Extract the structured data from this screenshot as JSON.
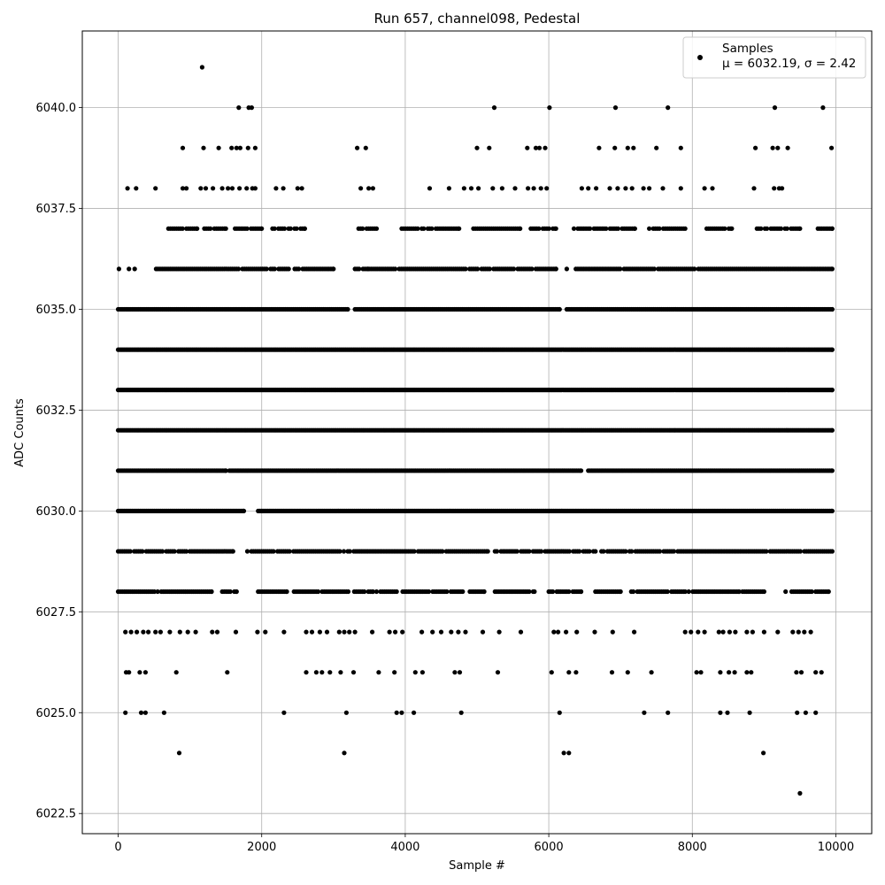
{
  "chart_data": {
    "type": "scatter",
    "title": "Run 657, channel098, Pedestal",
    "xlabel": "Sample #",
    "ylabel": "ADC Counts",
    "xlim": [
      -500,
      10500
    ],
    "ylim": [
      6022.0,
      6041.9
    ],
    "xticks": [
      0,
      2000,
      4000,
      6000,
      8000,
      10000
    ],
    "xtick_labels": [
      "0",
      "2000",
      "4000",
      "6000",
      "8000",
      "10000"
    ],
    "yticks": [
      6022.5,
      6025.0,
      6027.5,
      6030.0,
      6032.5,
      6035.0,
      6037.5,
      6040.0
    ],
    "ytick_labels": [
      "6022.5",
      "6025.0",
      "6027.5",
      "6030.0",
      "6032.5",
      "6035.0",
      "6037.5",
      "6040.0"
    ],
    "grid": true,
    "legend": {
      "placement": "top-right",
      "entries": [
        {
          "name": "Samples",
          "stat_line": "μ = 6032.19, σ = 2.42"
        }
      ]
    },
    "color": "#000000",
    "series": [
      {
        "name": "Samples",
        "levels": [
          {
            "y": 6028.0,
            "segments": [
              [
                0,
                550
              ],
              [
                600,
                1300
              ],
              [
                1450,
                1650
              ],
              [
                1950,
                2350
              ],
              [
                2450,
                3550
              ],
              [
                3600,
                4800
              ],
              [
                4900,
                5100
              ],
              [
                5250,
                5800
              ],
              [
                6000,
                6450
              ],
              [
                6650,
                7000
              ],
              [
                7150,
                7900
              ],
              [
                7950,
                8650
              ],
              [
                8700,
                9000
              ],
              [
                9300,
                9900
              ]
            ]
          },
          {
            "y": 6029.0,
            "segments": [
              [
                0,
                950
              ],
              [
                1000,
                1600
              ],
              [
                1800,
                5150
              ],
              [
                5250,
                9950
              ]
            ]
          },
          {
            "y": 6030.0,
            "segments": [
              [
                0,
                1750
              ],
              [
                1950,
                9950
              ]
            ]
          },
          {
            "y": 6031.0,
            "segments": [
              [
                0,
                1500
              ],
              [
                1550,
                6450
              ],
              [
                6550,
                9950
              ]
            ]
          },
          {
            "y": 6032.0,
            "segments": [
              [
                0,
                9950
              ]
            ]
          },
          {
            "y": 6033.0,
            "segments": [
              [
                0,
                9950
              ]
            ]
          },
          {
            "y": 6034.0,
            "segments": [
              [
                0,
                9950
              ]
            ]
          },
          {
            "y": 6035.0,
            "segments": [
              [
                0,
                3200
              ],
              [
                3300,
                6150
              ],
              [
                6250,
                9950
              ]
            ]
          },
          {
            "y": 6036.0,
            "segments": [
              [
                500,
                3000
              ],
              [
                3300,
                6100
              ],
              [
                6350,
                9950
              ]
            ]
          },
          {
            "y": 6037.0,
            "segments": [
              [
                700,
                1100
              ],
              [
                1200,
                1500
              ],
              [
                1600,
                2000
              ],
              [
                2150,
                2600
              ],
              [
                3350,
                3600
              ],
              [
                3950,
                4750
              ],
              [
                4950,
                5600
              ],
              [
                5750,
                6100
              ],
              [
                6350,
                7200
              ],
              [
                7400,
                7900
              ],
              [
                8200,
                8550
              ],
              [
                8900,
                9500
              ],
              [
                9750,
                9950
              ]
            ]
          }
        ],
        "points": [
          [
            1170,
            6041
          ],
          [
            1680,
            6040
          ],
          [
            1820,
            6040
          ],
          [
            1860,
            6040
          ],
          [
            5240,
            6040
          ],
          [
            6010,
            6040
          ],
          [
            6930,
            6040
          ],
          [
            7660,
            6040
          ],
          [
            9150,
            6040
          ],
          [
            9820,
            6040
          ],
          [
            900,
            6039
          ],
          [
            1190,
            6039
          ],
          [
            1400,
            6039
          ],
          [
            1580,
            6039
          ],
          [
            1650,
            6039
          ],
          [
            1700,
            6039
          ],
          [
            1810,
            6039
          ],
          [
            1910,
            6039
          ],
          [
            3330,
            6039
          ],
          [
            3450,
            6039
          ],
          [
            5000,
            6039
          ],
          [
            5170,
            6039
          ],
          [
            5700,
            6039
          ],
          [
            5820,
            6039
          ],
          [
            5870,
            6039
          ],
          [
            5950,
            6039
          ],
          [
            6700,
            6039
          ],
          [
            6920,
            6039
          ],
          [
            7100,
            6039
          ],
          [
            7180,
            6039
          ],
          [
            7500,
            6039
          ],
          [
            7840,
            6039
          ],
          [
            8880,
            6039
          ],
          [
            9120,
            6039
          ],
          [
            9190,
            6039
          ],
          [
            9330,
            6039
          ],
          [
            9940,
            6039
          ],
          [
            130,
            6038
          ],
          [
            250,
            6038
          ],
          [
            520,
            6038
          ],
          [
            900,
            6038
          ],
          [
            950,
            6038
          ],
          [
            1150,
            6038
          ],
          [
            1220,
            6038
          ],
          [
            1320,
            6038
          ],
          [
            1450,
            6038
          ],
          [
            1530,
            6038
          ],
          [
            1590,
            6038
          ],
          [
            1690,
            6038
          ],
          [
            1790,
            6038
          ],
          [
            1870,
            6038
          ],
          [
            1910,
            6038
          ],
          [
            2200,
            6038
          ],
          [
            2300,
            6038
          ],
          [
            2500,
            6038
          ],
          [
            2560,
            6038
          ],
          [
            3380,
            6038
          ],
          [
            3490,
            6038
          ],
          [
            3550,
            6038
          ],
          [
            4340,
            6038
          ],
          [
            4610,
            6038
          ],
          [
            4820,
            6038
          ],
          [
            4920,
            6038
          ],
          [
            5020,
            6038
          ],
          [
            5220,
            6038
          ],
          [
            5350,
            6038
          ],
          [
            5530,
            6038
          ],
          [
            5710,
            6038
          ],
          [
            5790,
            6038
          ],
          [
            5890,
            6038
          ],
          [
            5970,
            6038
          ],
          [
            6460,
            6038
          ],
          [
            6550,
            6038
          ],
          [
            6660,
            6038
          ],
          [
            6850,
            6038
          ],
          [
            6960,
            6038
          ],
          [
            7070,
            6038
          ],
          [
            7160,
            6038
          ],
          [
            7320,
            6038
          ],
          [
            7400,
            6038
          ],
          [
            7590,
            6038
          ],
          [
            7840,
            6038
          ],
          [
            8170,
            6038
          ],
          [
            8280,
            6038
          ],
          [
            8860,
            6038
          ],
          [
            9140,
            6038
          ],
          [
            9210,
            6038
          ],
          [
            9250,
            6038
          ],
          [
            10,
            6036
          ],
          [
            150,
            6036
          ],
          [
            230,
            6036
          ],
          [
            3480,
            6036
          ],
          [
            6250,
            6036
          ],
          [
            100,
            6027
          ],
          [
            180,
            6027
          ],
          [
            260,
            6027
          ],
          [
            350,
            6027
          ],
          [
            420,
            6027
          ],
          [
            520,
            6027
          ],
          [
            590,
            6027
          ],
          [
            720,
            6027
          ],
          [
            860,
            6027
          ],
          [
            970,
            6027
          ],
          [
            1080,
            6027
          ],
          [
            1310,
            6027
          ],
          [
            1380,
            6027
          ],
          [
            1640,
            6027
          ],
          [
            1940,
            6027
          ],
          [
            2050,
            6027
          ],
          [
            2310,
            6027
          ],
          [
            2620,
            6027
          ],
          [
            2700,
            6027
          ],
          [
            2810,
            6027
          ],
          [
            2910,
            6027
          ],
          [
            3080,
            6027
          ],
          [
            3150,
            6027
          ],
          [
            3220,
            6027
          ],
          [
            3300,
            6027
          ],
          [
            3540,
            6027
          ],
          [
            3780,
            6027
          ],
          [
            3860,
            6027
          ],
          [
            3960,
            6027
          ],
          [
            4230,
            6027
          ],
          [
            4380,
            6027
          ],
          [
            4500,
            6027
          ],
          [
            4640,
            6027
          ],
          [
            4740,
            6027
          ],
          [
            4840,
            6027
          ],
          [
            5080,
            6027
          ],
          [
            5310,
            6027
          ],
          [
            5610,
            6027
          ],
          [
            6070,
            6027
          ],
          [
            6130,
            6027
          ],
          [
            6240,
            6027
          ],
          [
            6390,
            6027
          ],
          [
            6640,
            6027
          ],
          [
            6890,
            6027
          ],
          [
            7190,
            6027
          ],
          [
            7900,
            6027
          ],
          [
            7980,
            6027
          ],
          [
            8080,
            6027
          ],
          [
            8170,
            6027
          ],
          [
            8370,
            6027
          ],
          [
            8430,
            6027
          ],
          [
            8520,
            6027
          ],
          [
            8600,
            6027
          ],
          [
            8760,
            6027
          ],
          [
            8840,
            6027
          ],
          [
            9000,
            6027
          ],
          [
            9190,
            6027
          ],
          [
            9400,
            6027
          ],
          [
            9480,
            6027
          ],
          [
            9560,
            6027
          ],
          [
            9650,
            6027
          ],
          [
            110,
            6026
          ],
          [
            150,
            6026
          ],
          [
            300,
            6026
          ],
          [
            380,
            6026
          ],
          [
            810,
            6026
          ],
          [
            1520,
            6026
          ],
          [
            2620,
            6026
          ],
          [
            2760,
            6026
          ],
          [
            2840,
            6026
          ],
          [
            2950,
            6026
          ],
          [
            3100,
            6026
          ],
          [
            3280,
            6026
          ],
          [
            3630,
            6026
          ],
          [
            3850,
            6026
          ],
          [
            4140,
            6026
          ],
          [
            4240,
            6026
          ],
          [
            4690,
            6026
          ],
          [
            4760,
            6026
          ],
          [
            5290,
            6026
          ],
          [
            6040,
            6026
          ],
          [
            6280,
            6026
          ],
          [
            6380,
            6026
          ],
          [
            6880,
            6026
          ],
          [
            7100,
            6026
          ],
          [
            7430,
            6026
          ],
          [
            8060,
            6026
          ],
          [
            8120,
            6026
          ],
          [
            8390,
            6026
          ],
          [
            8510,
            6026
          ],
          [
            8590,
            6026
          ],
          [
            8760,
            6026
          ],
          [
            8820,
            6026
          ],
          [
            9450,
            6026
          ],
          [
            9520,
            6026
          ],
          [
            9720,
            6026
          ],
          [
            9800,
            6026
          ],
          [
            100,
            6025
          ],
          [
            320,
            6025
          ],
          [
            380,
            6025
          ],
          [
            640,
            6025
          ],
          [
            2310,
            6025
          ],
          [
            3180,
            6025
          ],
          [
            3880,
            6025
          ],
          [
            3950,
            6025
          ],
          [
            4120,
            6025
          ],
          [
            4780,
            6025
          ],
          [
            6150,
            6025
          ],
          [
            7330,
            6025
          ],
          [
            7660,
            6025
          ],
          [
            8390,
            6025
          ],
          [
            8490,
            6025
          ],
          [
            8800,
            6025
          ],
          [
            9460,
            6025
          ],
          [
            9580,
            6025
          ],
          [
            9720,
            6025
          ],
          [
            850,
            6024
          ],
          [
            3150,
            6024
          ],
          [
            6210,
            6024
          ],
          [
            6280,
            6024
          ],
          [
            8990,
            6024
          ],
          [
            9500,
            6023
          ]
        ]
      }
    ]
  }
}
